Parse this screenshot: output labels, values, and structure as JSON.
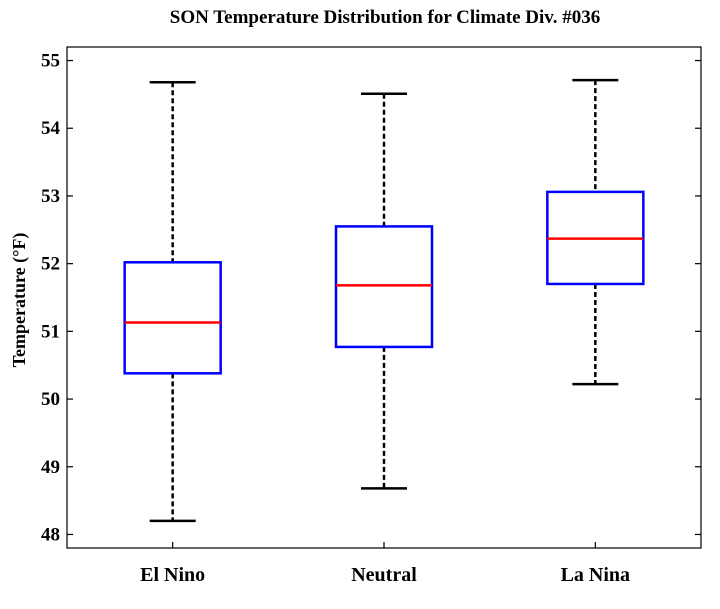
{
  "chart_data": {
    "type": "boxplot",
    "title": "SON Temperature Distribution for Climate Div. #036",
    "xlabel": "",
    "ylabel": "Temperature (°F)",
    "ylim": [
      47.8,
      55.2
    ],
    "yticks": [
      48,
      49,
      50,
      51,
      52,
      53,
      54,
      55
    ],
    "ytick_labels": [
      "48",
      "49",
      "50",
      "51",
      "52",
      "53",
      "54",
      "55"
    ],
    "grid": false,
    "categories": [
      "El Nino",
      "Neutral",
      "La Nina"
    ],
    "boxes": [
      {
        "name": "El Nino",
        "whisker_low": 48.2,
        "q1": 50.38,
        "median": 51.13,
        "q3": 52.02,
        "whisker_high": 54.68
      },
      {
        "name": "Neutral",
        "whisker_low": 48.68,
        "q1": 50.77,
        "median": 51.68,
        "q3": 52.55,
        "whisker_high": 54.51
      },
      {
        "name": "La Nina",
        "whisker_low": 50.22,
        "q1": 51.7,
        "median": 52.37,
        "q3": 53.06,
        "whisker_high": 54.71
      }
    ],
    "colors": {
      "box": "#0000ff",
      "median": "#ff0000",
      "whisker": "#000000",
      "axes": "#000000"
    }
  }
}
